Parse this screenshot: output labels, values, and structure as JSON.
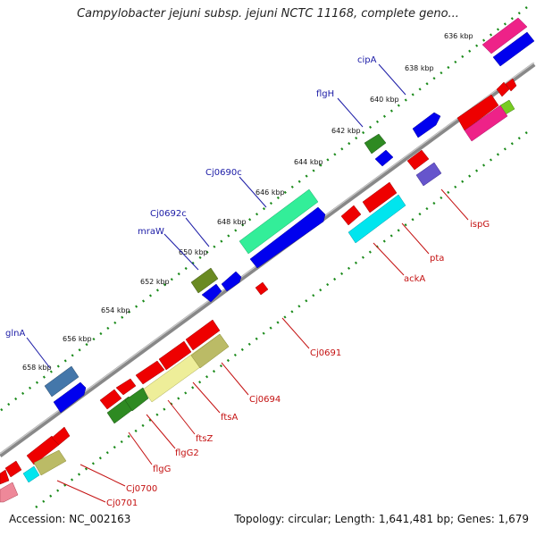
{
  "title": "Campylobacter jejuni subsp. jejuni NCTC 11168, complete geno...",
  "footer": {
    "accession": "Accession: NC_002163",
    "summary": "Topology: circular; Length: 1,641,481 bp; Genes: 1,679"
  },
  "ticks": [
    "636 kbp",
    "638 kbp",
    "640 kbp",
    "642 kbp",
    "644 kbp",
    "646 kbp",
    "648 kbp",
    "650 kbp",
    "652 kbp",
    "654 kbp",
    "656 kbp",
    "658 kbp"
  ],
  "genes_forward_labels": [
    "cipA",
    "flgH",
    "Cj0690c",
    "Cj0692c",
    "mraW",
    "glnA"
  ],
  "genes_reverse_labels": [
    "ispG",
    "pta",
    "ackA",
    "Cj0691",
    "Cj0694",
    "ftsA",
    "ftsZ",
    "flgG2",
    "flgG",
    "Cj0700",
    "Cj0701"
  ],
  "colors": {
    "blue": "#0000ee",
    "red": "#ee0000",
    "green": "#2e7d1f",
    "teal": "#33ee99",
    "cyan": "#00e5ee",
    "pink": "#ee2288",
    "purple": "#6655cc",
    "olive": "#bbbb66",
    "steel": "#4477aa",
    "backbone": "#888888",
    "tick_dots": "#1a8a1a",
    "label_blue": "#1a1aa6",
    "label_red": "#c41111"
  }
}
